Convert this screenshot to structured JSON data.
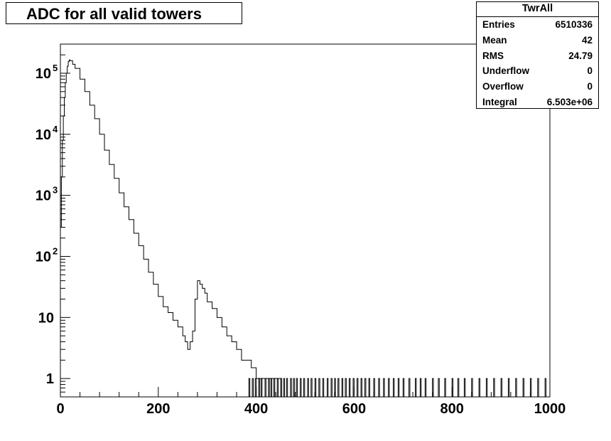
{
  "title": "ADC for all valid towers",
  "stats_box": {
    "name": "TwrAll",
    "rows": [
      {
        "key": "Entries",
        "value": "6510336"
      },
      {
        "key": "Mean",
        "value": "42"
      },
      {
        "key": "RMS",
        "value": "24.79"
      },
      {
        "key": "Underflow",
        "value": "0"
      },
      {
        "key": "Overflow",
        "value": "0"
      },
      {
        "key": "Integral",
        "value": "6.503e+06"
      }
    ]
  },
  "colors": {
    "line": "#000000",
    "background": "#ffffff"
  },
  "chart_data": {
    "type": "line",
    "title": "ADC for all valid towers",
    "xlabel": "",
    "ylabel": "",
    "xlim": [
      0,
      1000
    ],
    "ylim": [
      0.5,
      300000
    ],
    "y_scale": "log",
    "grid": false,
    "x_ticks": [
      "0",
      "200",
      "400",
      "600",
      "800",
      "1000"
    ],
    "y_ticks": [
      {
        "value": 1,
        "label": "1"
      },
      {
        "value": 10,
        "label": "10"
      },
      {
        "value": 100,
        "label": "10",
        "exp": "2"
      },
      {
        "value": 1000,
        "label": "10",
        "exp": "3"
      },
      {
        "value": 10000,
        "label": "10",
        "exp": "4"
      },
      {
        "value": 100000,
        "label": "10",
        "exp": "5"
      }
    ],
    "series": [
      {
        "x": [
          0,
          2,
          4,
          6,
          8,
          10,
          12,
          14,
          16,
          18,
          20,
          25,
          30,
          40,
          50,
          60,
          70,
          80,
          90,
          100,
          110,
          120,
          130,
          140,
          150,
          160,
          170,
          180,
          190,
          200,
          210,
          220,
          230,
          240,
          250,
          255,
          260,
          265,
          270,
          275,
          280,
          285,
          290,
          295,
          300,
          310,
          320,
          330,
          340,
          350,
          360,
          370,
          380,
          390,
          400,
          410,
          420,
          430,
          440,
          450
        ],
        "values": [
          300,
          2000,
          8000,
          20000,
          40000,
          70000,
          100000,
          130000,
          155000,
          165000,
          160000,
          140000,
          120000,
          80000,
          50000,
          30000,
          18000,
          10000,
          5500,
          3200,
          1900,
          1100,
          650,
          400,
          240,
          150,
          90,
          55,
          35,
          22,
          15,
          12,
          9,
          7,
          5,
          4,
          3,
          4,
          6,
          20,
          40,
          35,
          30,
          25,
          18,
          14,
          10,
          7,
          5,
          4,
          3,
          2,
          2,
          1.5,
          1,
          1,
          1,
          1,
          1,
          1
        ]
      }
    ],
    "sparse_unit_bins": [
      385,
      392,
      398,
      405,
      410,
      418,
      425,
      430,
      436,
      443,
      450,
      456,
      462,
      470,
      476,
      482,
      490,
      497,
      505,
      512,
      520,
      528,
      536,
      545,
      553,
      560,
      567,
      575,
      582,
      590,
      598,
      606,
      614,
      622,
      630,
      640,
      650,
      660,
      670,
      680,
      690,
      700,
      712,
      725,
      735,
      745,
      760,
      772,
      785,
      800,
      812,
      825,
      840,
      855,
      870,
      885,
      900,
      915,
      930,
      945,
      960,
      975,
      990
    ]
  }
}
